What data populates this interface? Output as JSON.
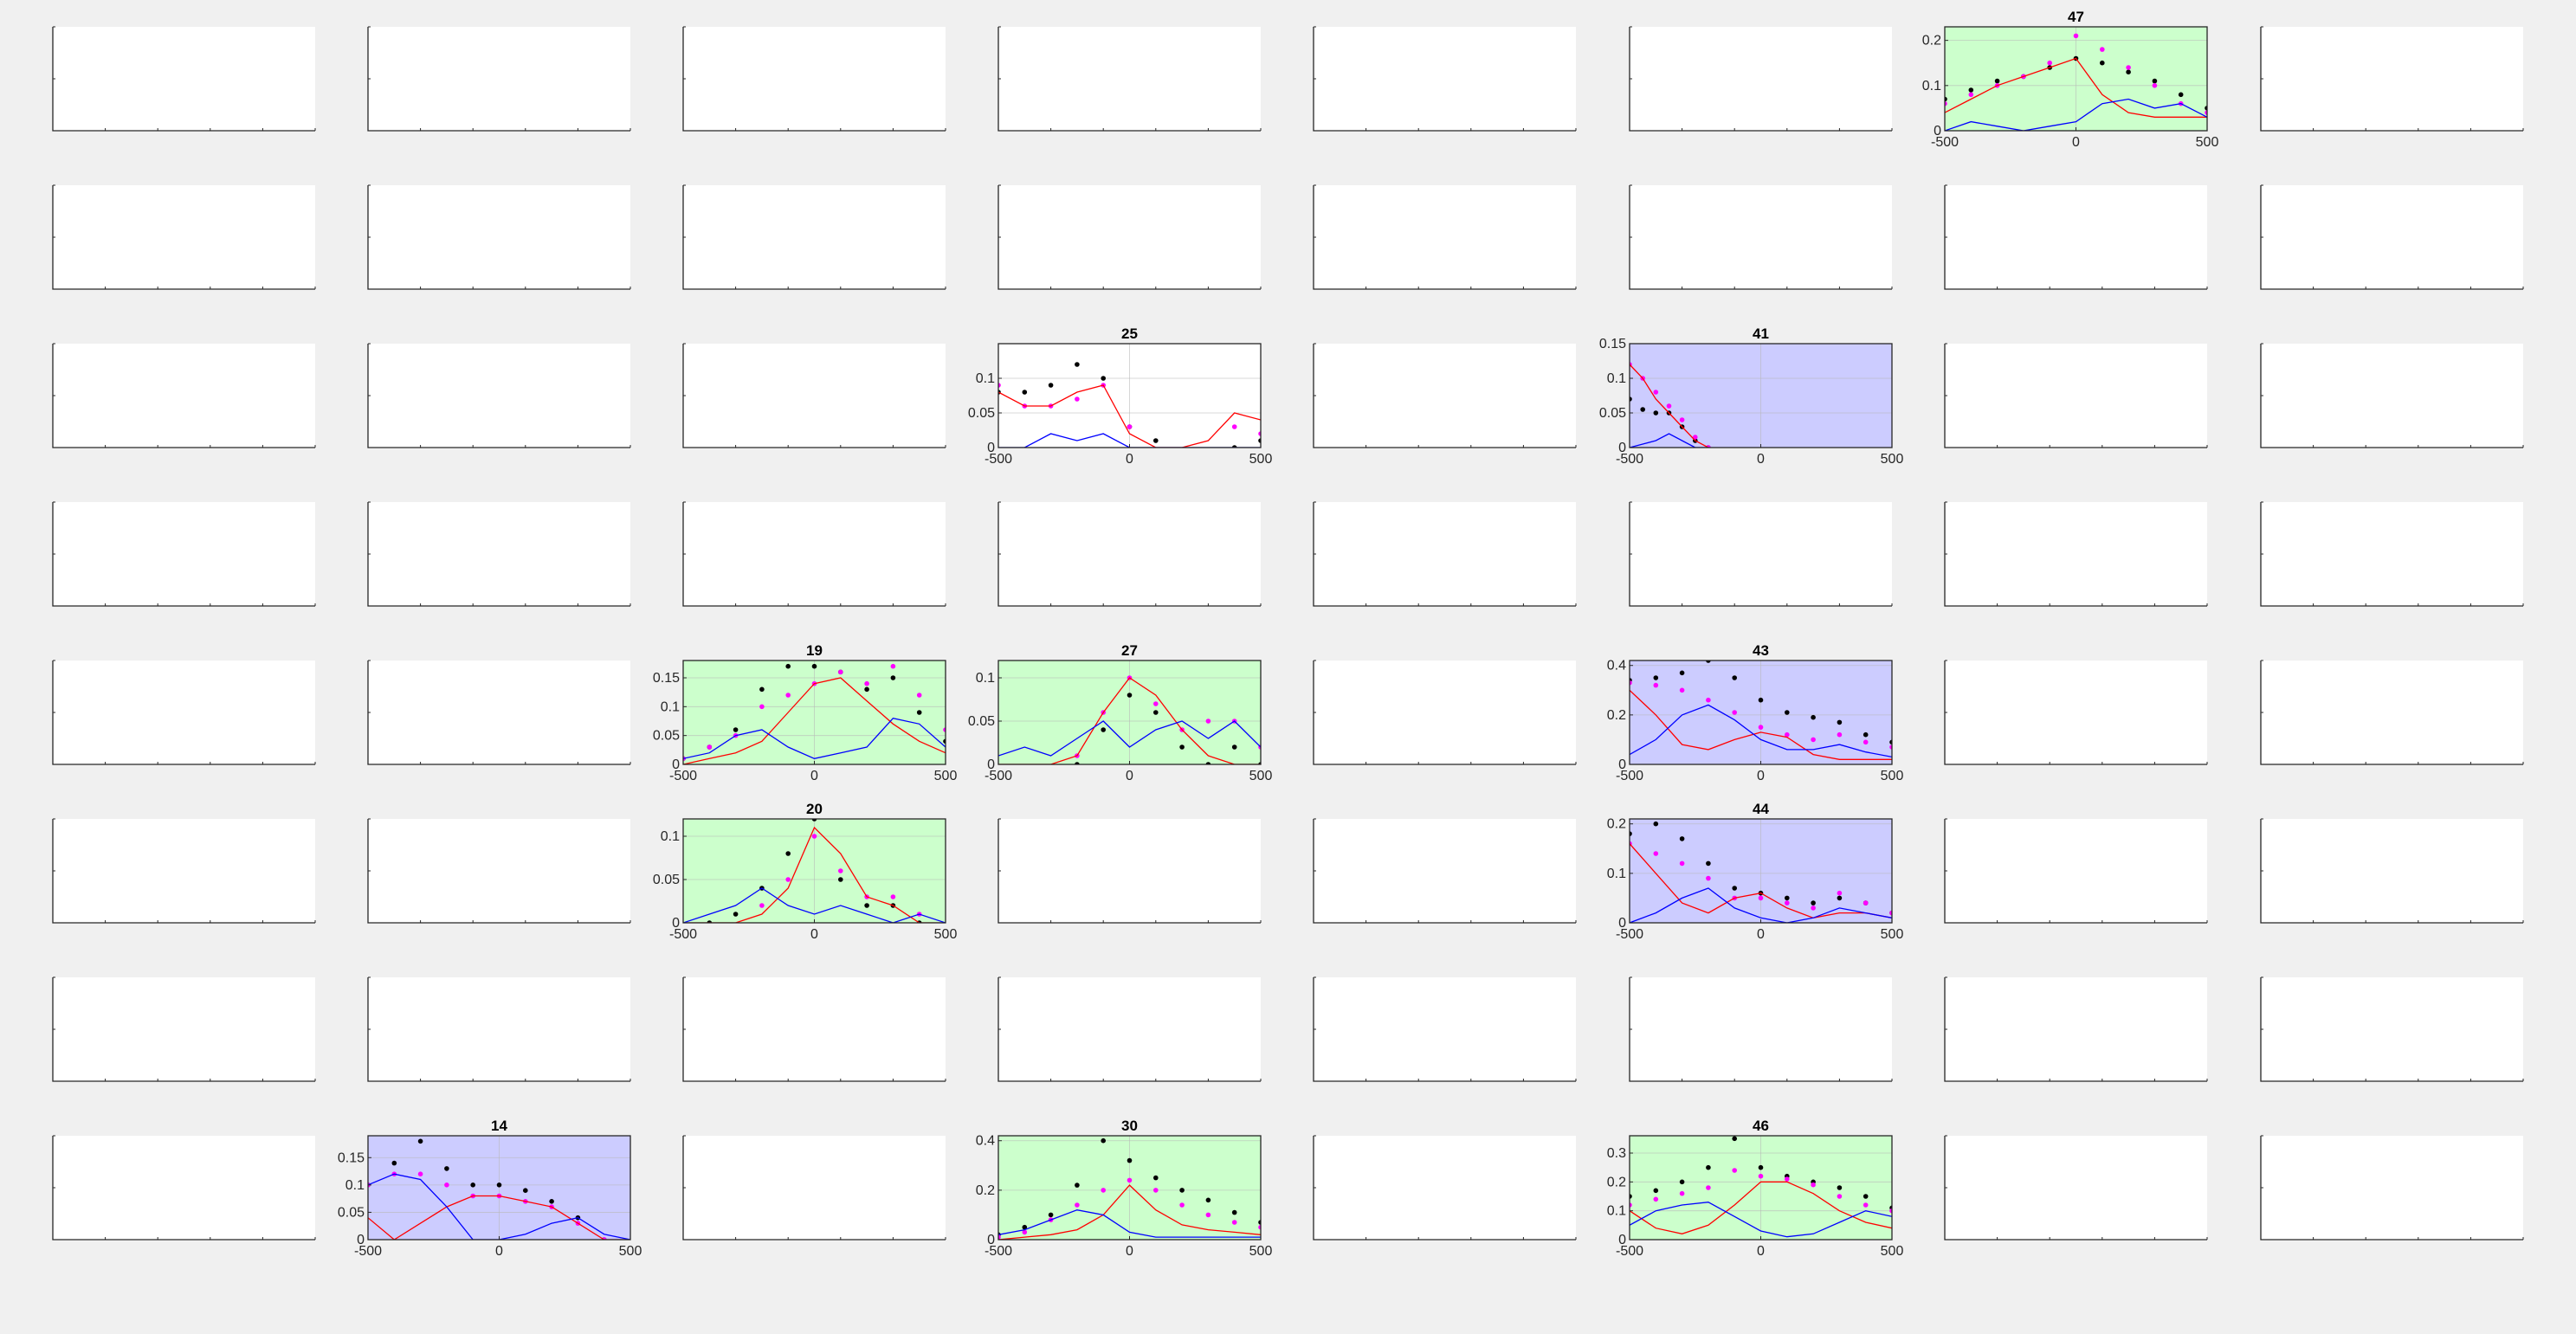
{
  "figure": {
    "grid_rows": 8,
    "grid_cols": 8,
    "xlim": [
      -500,
      500
    ],
    "x_ticks": [
      -500,
      0,
      500
    ],
    "colors": {
      "figure_bg": "#f0f0f0",
      "axes_bg_plain": "#ffffff",
      "axes_bg_green": "#ccffcc",
      "axes_bg_blue": "#ccccff",
      "black_series": "#000000",
      "magenta_series": "#ff00ff",
      "red_line": "#ff0000",
      "blue_line": "#0000ff"
    }
  },
  "chart_data": [
    {
      "type": "scatter",
      "title": "47",
      "row": 0,
      "col": 6,
      "background": "green",
      "ylim": [
        0,
        0.23
      ],
      "y_ticks": [
        0,
        0.1,
        0.2
      ],
      "y_tick_labels": [
        "0",
        "0.1",
        "0.2"
      ],
      "x": [
        -500,
        -400,
        -300,
        -200,
        -100,
        0,
        100,
        200,
        300,
        400,
        500
      ],
      "series": [
        {
          "kind": "dots",
          "color": "black",
          "values": [
            0.07,
            0.09,
            0.11,
            0.12,
            0.14,
            0.16,
            0.15,
            0.13,
            0.11,
            0.08,
            0.05
          ]
        },
        {
          "kind": "dots",
          "color": "magenta",
          "values": [
            0.06,
            0.08,
            0.1,
            0.12,
            0.15,
            0.21,
            0.18,
            0.14,
            0.1,
            0.06,
            0.04
          ]
        },
        {
          "kind": "line",
          "color": "red",
          "values": [
            0.04,
            0.07,
            0.1,
            0.12,
            0.14,
            0.16,
            0.08,
            0.04,
            0.03,
            0.03,
            0.03
          ]
        },
        {
          "kind": "line",
          "color": "blue",
          "values": [
            0.0,
            0.02,
            0.01,
            0.0,
            0.01,
            0.02,
            0.06,
            0.07,
            0.05,
            0.06,
            0.03
          ]
        }
      ]
    },
    {
      "type": "scatter",
      "title": "25",
      "row": 2,
      "col": 3,
      "background": "white",
      "ylim": [
        0,
        0.15
      ],
      "y_ticks": [
        0,
        0.05,
        0.1
      ],
      "y_tick_labels": [
        "0",
        "0.05",
        "0.1"
      ],
      "x": [
        -500,
        -400,
        -300,
        -200,
        -100,
        0,
        100,
        200,
        300,
        400,
        500
      ],
      "series": [
        {
          "kind": "dots",
          "color": "black",
          "values": [
            0.08,
            0.08,
            0.09,
            0.12,
            0.1,
            0.03,
            0.01,
            null,
            null,
            0.0,
            0.01
          ]
        },
        {
          "kind": "dots",
          "color": "magenta",
          "values": [
            0.09,
            0.06,
            0.06,
            0.07,
            0.09,
            0.03,
            null,
            null,
            null,
            0.03,
            0.02
          ]
        },
        {
          "kind": "line",
          "color": "red",
          "values": [
            0.08,
            0.06,
            0.06,
            0.08,
            0.09,
            0.02,
            0.0,
            0.0,
            0.01,
            0.05,
            0.04
          ]
        },
        {
          "kind": "line",
          "color": "blue",
          "values": [
            0.0,
            0.0,
            0.02,
            0.01,
            0.02,
            0.0,
            0.0,
            0.0,
            0.0,
            0.0,
            0.0
          ]
        }
      ]
    },
    {
      "type": "scatter",
      "title": "41",
      "row": 2,
      "col": 5,
      "background": "blue",
      "ylim": [
        0,
        0.15
      ],
      "y_ticks": [
        0,
        0.05,
        0.1,
        0.15
      ],
      "y_tick_labels": [
        "0",
        "0.05",
        "0.1",
        "0.15"
      ],
      "x": [
        -500,
        -450,
        -400,
        -350,
        -300,
        -250,
        -200
      ],
      "series": [
        {
          "kind": "dots",
          "color": "black",
          "values": [
            0.07,
            0.055,
            0.05,
            0.05,
            0.03,
            0.01,
            0.0
          ]
        },
        {
          "kind": "dots",
          "color": "magenta",
          "values": [
            0.12,
            0.1,
            0.08,
            0.06,
            0.04,
            0.015,
            0.0
          ]
        },
        {
          "kind": "line",
          "color": "red",
          "values": [
            0.12,
            0.1,
            0.07,
            0.05,
            0.03,
            0.01,
            0.0
          ]
        },
        {
          "kind": "line",
          "color": "blue",
          "values": [
            0.0,
            0.005,
            0.01,
            0.02,
            0.01,
            0.0,
            0.0
          ]
        }
      ]
    },
    {
      "type": "scatter",
      "title": "19",
      "row": 4,
      "col": 2,
      "background": "green",
      "ylim": [
        0,
        0.18
      ],
      "y_ticks": [
        0,
        0.05,
        0.1,
        0.15
      ],
      "y_tick_labels": [
        "0",
        "0.05",
        "0.1",
        "0.15"
      ],
      "x": [
        -500,
        -400,
        -300,
        -200,
        -100,
        0,
        100,
        200,
        300,
        400,
        500
      ],
      "series": [
        {
          "kind": "dots",
          "color": "black",
          "values": [
            0.01,
            0.03,
            0.06,
            0.13,
            0.17,
            0.17,
            0.16,
            0.13,
            0.15,
            0.09,
            0.04
          ]
        },
        {
          "kind": "dots",
          "color": "magenta",
          "values": [
            0.01,
            0.03,
            0.05,
            0.1,
            0.12,
            0.14,
            0.16,
            0.14,
            0.17,
            0.12,
            0.06
          ]
        },
        {
          "kind": "line",
          "color": "red",
          "values": [
            0.0,
            0.01,
            0.02,
            0.04,
            0.09,
            0.14,
            0.15,
            0.11,
            0.07,
            0.04,
            0.02
          ]
        },
        {
          "kind": "line",
          "color": "blue",
          "values": [
            0.01,
            0.02,
            0.05,
            0.06,
            0.03,
            0.01,
            0.02,
            0.03,
            0.08,
            0.07,
            0.03
          ]
        }
      ]
    },
    {
      "type": "scatter",
      "title": "27",
      "row": 4,
      "col": 3,
      "background": "green",
      "ylim": [
        0,
        0.12
      ],
      "y_ticks": [
        0,
        0.05,
        0.1
      ],
      "y_tick_labels": [
        "0",
        "0.05",
        "0.1"
      ],
      "x": [
        -500,
        -400,
        -300,
        -200,
        -100,
        0,
        100,
        200,
        300,
        400,
        500
      ],
      "series": [
        {
          "kind": "dots",
          "color": "black",
          "values": [
            null,
            null,
            null,
            0.0,
            0.04,
            0.08,
            0.06,
            0.02,
            0.0,
            0.02,
            0.0
          ]
        },
        {
          "kind": "dots",
          "color": "magenta",
          "values": [
            null,
            null,
            null,
            0.01,
            0.06,
            0.1,
            0.07,
            0.04,
            0.05,
            0.05,
            0.02
          ]
        },
        {
          "kind": "line",
          "color": "red",
          "values": [
            0.0,
            0.0,
            0.0,
            0.01,
            0.06,
            0.1,
            0.08,
            0.04,
            0.01,
            0.0,
            0.0
          ]
        },
        {
          "kind": "line",
          "color": "blue",
          "values": [
            0.01,
            0.02,
            0.01,
            0.03,
            0.05,
            0.02,
            0.04,
            0.05,
            0.03,
            0.05,
            0.02
          ]
        }
      ]
    },
    {
      "type": "scatter",
      "title": "43",
      "row": 4,
      "col": 5,
      "background": "blue",
      "ylim": [
        0,
        0.42
      ],
      "y_ticks": [
        0,
        0.2,
        0.4
      ],
      "y_tick_labels": [
        "0",
        "0.2",
        "0.4"
      ],
      "x": [
        -500,
        -400,
        -300,
        -200,
        -100,
        0,
        100,
        200,
        300,
        400,
        500
      ],
      "series": [
        {
          "kind": "dots",
          "color": "black",
          "values": [
            0.34,
            0.35,
            0.37,
            0.42,
            0.35,
            0.26,
            0.21,
            0.19,
            0.17,
            0.12,
            0.09
          ]
        },
        {
          "kind": "dots",
          "color": "magenta",
          "values": [
            0.33,
            0.32,
            0.3,
            0.26,
            0.21,
            0.15,
            0.12,
            0.1,
            0.12,
            0.09,
            0.07
          ]
        },
        {
          "kind": "line",
          "color": "red",
          "values": [
            0.3,
            0.2,
            0.08,
            0.06,
            0.1,
            0.13,
            0.11,
            0.04,
            0.02,
            0.02,
            0.02
          ]
        },
        {
          "kind": "line",
          "color": "blue",
          "values": [
            0.04,
            0.1,
            0.2,
            0.24,
            0.18,
            0.1,
            0.06,
            0.06,
            0.08,
            0.05,
            0.03
          ]
        }
      ]
    },
    {
      "type": "scatter",
      "title": "20",
      "row": 5,
      "col": 2,
      "background": "green",
      "ylim": [
        0,
        0.12
      ],
      "y_ticks": [
        0,
        0.05,
        0.1
      ],
      "y_tick_labels": [
        "0",
        "0.05",
        "0.1"
      ],
      "x": [
        -500,
        -400,
        -300,
        -200,
        -100,
        0,
        100,
        200,
        300,
        400,
        500
      ],
      "series": [
        {
          "kind": "dots",
          "color": "black",
          "values": [
            null,
            0.0,
            0.01,
            0.04,
            0.08,
            0.12,
            0.05,
            0.02,
            0.02,
            0.0,
            null
          ]
        },
        {
          "kind": "dots",
          "color": "magenta",
          "values": [
            null,
            null,
            null,
            0.02,
            0.05,
            0.1,
            0.06,
            0.03,
            0.03,
            0.01,
            null
          ]
        },
        {
          "kind": "line",
          "color": "red",
          "values": [
            0.0,
            0.0,
            0.0,
            0.01,
            0.04,
            0.11,
            0.08,
            0.03,
            0.02,
            0.0,
            0.0
          ]
        },
        {
          "kind": "line",
          "color": "blue",
          "values": [
            0.0,
            0.01,
            0.02,
            0.04,
            0.02,
            0.01,
            0.02,
            0.01,
            0.0,
            0.01,
            0.0
          ]
        }
      ]
    },
    {
      "type": "scatter",
      "title": "44",
      "row": 5,
      "col": 5,
      "background": "blue",
      "ylim": [
        0,
        0.21
      ],
      "y_ticks": [
        0,
        0.1,
        0.2
      ],
      "y_tick_labels": [
        "0",
        "0.1",
        "0.2"
      ],
      "x": [
        -500,
        -400,
        -300,
        -200,
        -100,
        0,
        100,
        200,
        300,
        400,
        500
      ],
      "series": [
        {
          "kind": "dots",
          "color": "black",
          "values": [
            0.18,
            0.2,
            0.17,
            0.12,
            0.07,
            0.06,
            0.05,
            0.04,
            0.05,
            0.04,
            0.02
          ]
        },
        {
          "kind": "dots",
          "color": "magenta",
          "values": [
            0.16,
            0.14,
            0.12,
            0.09,
            0.05,
            0.05,
            0.04,
            0.03,
            0.06,
            0.04,
            0.02
          ]
        },
        {
          "kind": "line",
          "color": "red",
          "values": [
            0.16,
            0.1,
            0.04,
            0.02,
            0.05,
            0.06,
            0.03,
            0.01,
            0.02,
            0.02,
            0.01
          ]
        },
        {
          "kind": "line",
          "color": "blue",
          "values": [
            0.0,
            0.02,
            0.05,
            0.07,
            0.03,
            0.01,
            0.0,
            0.01,
            0.03,
            0.02,
            0.01
          ]
        }
      ]
    },
    {
      "type": "scatter",
      "title": "14",
      "row": 7,
      "col": 1,
      "background": "blue",
      "ylim": [
        0,
        0.19
      ],
      "y_ticks": [
        0,
        0.05,
        0.1,
        0.15
      ],
      "y_tick_labels": [
        "0",
        "0.05",
        "0.1",
        "0.15"
      ],
      "x": [
        -500,
        -400,
        -300,
        -200,
        -100,
        0,
        100,
        200,
        300,
        400,
        500
      ],
      "series": [
        {
          "kind": "dots",
          "color": "black",
          "values": [
            0.1,
            0.14,
            0.18,
            0.13,
            0.1,
            0.1,
            0.09,
            0.07,
            0.04,
            0.0,
            null
          ]
        },
        {
          "kind": "dots",
          "color": "magenta",
          "values": [
            0.1,
            0.12,
            0.12,
            0.1,
            0.08,
            0.08,
            0.07,
            0.06,
            0.03,
            0.0,
            null
          ]
        },
        {
          "kind": "line",
          "color": "red",
          "values": [
            0.04,
            0.0,
            0.03,
            0.06,
            0.08,
            0.08,
            0.07,
            0.06,
            0.03,
            0.0,
            0.0
          ]
        },
        {
          "kind": "line",
          "color": "blue",
          "values": [
            0.1,
            0.12,
            0.11,
            0.06,
            0.0,
            0.0,
            0.01,
            0.03,
            0.04,
            0.01,
            0.0
          ]
        }
      ]
    },
    {
      "type": "scatter",
      "title": "30",
      "row": 7,
      "col": 3,
      "background": "green",
      "ylim": [
        0,
        0.42
      ],
      "y_ticks": [
        0,
        0.2,
        0.4
      ],
      "y_tick_labels": [
        "0",
        "0.2",
        "0.4"
      ],
      "x": [
        -500,
        -400,
        -300,
        -200,
        -100,
        0,
        100,
        200,
        300,
        400,
        500
      ],
      "series": [
        {
          "kind": "dots",
          "color": "black",
          "values": [
            0.02,
            0.05,
            0.1,
            0.22,
            0.4,
            0.32,
            0.25,
            0.2,
            0.16,
            0.11,
            0.07
          ]
        },
        {
          "kind": "dots",
          "color": "magenta",
          "values": [
            0.01,
            0.03,
            0.08,
            0.14,
            0.2,
            0.24,
            0.2,
            0.14,
            0.1,
            0.07,
            0.05
          ]
        },
        {
          "kind": "line",
          "color": "red",
          "values": [
            0.0,
            0.01,
            0.02,
            0.04,
            0.1,
            0.22,
            0.12,
            0.06,
            0.04,
            0.03,
            0.02
          ]
        },
        {
          "kind": "line",
          "color": "blue",
          "values": [
            0.02,
            0.04,
            0.08,
            0.12,
            0.1,
            0.03,
            0.01,
            0.01,
            0.01,
            0.01,
            0.01
          ]
        }
      ]
    },
    {
      "type": "scatter",
      "title": "46",
      "row": 7,
      "col": 5,
      "background": "green",
      "ylim": [
        0,
        0.36
      ],
      "y_ticks": [
        0,
        0.1,
        0.2,
        0.3
      ],
      "y_tick_labels": [
        "0",
        "0.1",
        "0.2",
        "0.3"
      ],
      "x": [
        -500,
        -400,
        -300,
        -200,
        -100,
        0,
        100,
        200,
        300,
        400,
        500
      ],
      "series": [
        {
          "kind": "dots",
          "color": "black",
          "values": [
            0.15,
            0.17,
            0.2,
            0.25,
            0.35,
            0.25,
            0.22,
            0.2,
            0.18,
            0.15,
            0.11
          ]
        },
        {
          "kind": "dots",
          "color": "magenta",
          "values": [
            0.12,
            0.14,
            0.16,
            0.18,
            0.24,
            0.22,
            0.21,
            0.19,
            0.15,
            0.12,
            0.1
          ]
        },
        {
          "kind": "line",
          "color": "red",
          "values": [
            0.1,
            0.04,
            0.02,
            0.05,
            0.12,
            0.2,
            0.2,
            0.16,
            0.1,
            0.06,
            0.04
          ]
        },
        {
          "kind": "line",
          "color": "blue",
          "values": [
            0.05,
            0.1,
            0.12,
            0.13,
            0.08,
            0.03,
            0.01,
            0.02,
            0.06,
            0.1,
            0.08
          ]
        }
      ]
    }
  ]
}
